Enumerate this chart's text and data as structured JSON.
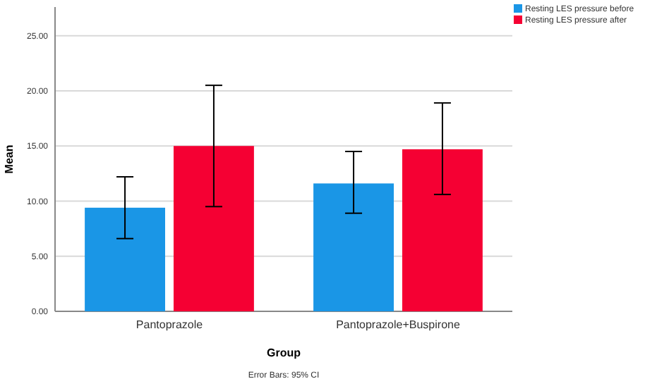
{
  "chart_data": {
    "type": "bar",
    "xlabel": "Group",
    "ylabel": "Mean",
    "categories": [
      "Pantoprazole",
      "Pantoprazole+Buspirone"
    ],
    "series": [
      {
        "name": "Resting LES pressure before",
        "color": "#1a96e6",
        "values": [
          9.4,
          11.6
        ],
        "errors": [
          [
            6.6,
            12.2
          ],
          [
            8.9,
            14.5
          ]
        ]
      },
      {
        "name": "Resting LES pressure after",
        "color": "#f50033",
        "values": [
          15.0,
          14.7
        ],
        "errors": [
          [
            9.5,
            20.5
          ],
          [
            10.6,
            18.9
          ]
        ]
      }
    ],
    "ylim": [
      0,
      27.6
    ],
    "yticks": [
      {
        "value": 0,
        "label": "0.00"
      },
      {
        "value": 5,
        "label": "5.00"
      },
      {
        "value": 10,
        "label": "10.00"
      },
      {
        "value": 15,
        "label": "15.00"
      },
      {
        "value": 20,
        "label": "20.00"
      },
      {
        "value": 25,
        "label": "25.00"
      }
    ],
    "grid": "y",
    "legend": "top right",
    "annotations": [
      "Error Bars: 95% CI"
    ]
  }
}
